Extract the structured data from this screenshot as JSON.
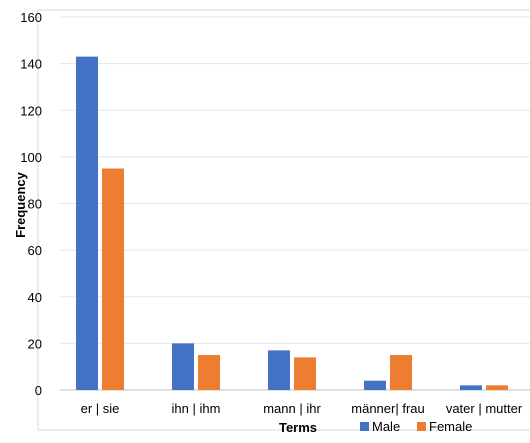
{
  "chart_data": {
    "type": "bar",
    "categories": [
      "er | sie",
      "ihn | ihm",
      "mann | ihr",
      "männer| frau",
      "vater | mutter"
    ],
    "series": [
      {
        "name": "Male",
        "values": [
          143,
          20,
          17,
          4,
          2
        ],
        "color": "#4472C4"
      },
      {
        "name": "Female",
        "values": [
          95,
          15,
          14,
          15,
          2
        ],
        "color": "#ED7D31"
      }
    ],
    "xlabel": "Terms",
    "ylabel": "Frequency",
    "ylim": [
      0,
      160
    ],
    "yticks": [
      0,
      20,
      40,
      60,
      80,
      100,
      120,
      140,
      160
    ],
    "grid": true,
    "legend_position": "bottom"
  }
}
